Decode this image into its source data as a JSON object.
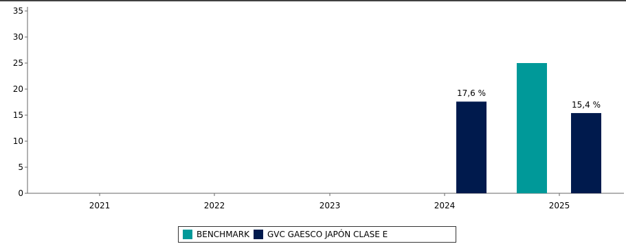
{
  "chart_data": {
    "type": "bar",
    "categories": [
      "2021",
      "2022",
      "2023",
      "2024",
      "2025"
    ],
    "ylim": [
      0,
      35
    ],
    "y_ticks": [
      "0",
      "5",
      "10",
      "15",
      "20",
      "25",
      "30",
      "35"
    ],
    "grid": false,
    "legend_position": "bottom-center",
    "series": [
      {
        "name": "BENCHMARK",
        "color": "#009999",
        "values": [
          null,
          null,
          null,
          null,
          25.0
        ],
        "labels": [
          null,
          null,
          null,
          null,
          null
        ]
      },
      {
        "name": "GVC GAESCO JAPÓN CLASE E",
        "color": "#001a4d",
        "values": [
          null,
          null,
          null,
          17.6,
          15.4
        ],
        "labels": [
          null,
          null,
          null,
          "17,6 %",
          "15,4 %"
        ]
      }
    ]
  }
}
